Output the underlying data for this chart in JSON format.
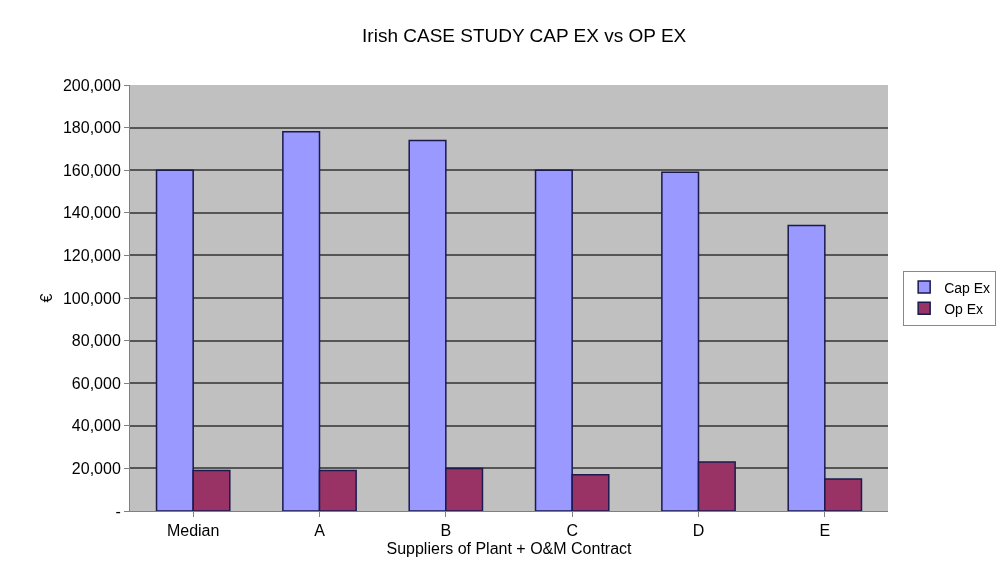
{
  "chart_data": {
    "type": "bar",
    "title": "Irish CASE STUDY CAP EX vs OP EX",
    "xlabel": "Suppliers of Plant + O&M Contract",
    "ylabel": "€",
    "categories": [
      "Median",
      "A",
      "B",
      "C",
      "D",
      "E"
    ],
    "series": [
      {
        "name": "Cap Ex",
        "color": "#9999ff",
        "values": [
          160000,
          178000,
          174000,
          160000,
          159000,
          134000
        ]
      },
      {
        "name": "Op Ex",
        "color": "#993366",
        "values": [
          19000,
          19000,
          20000,
          17000,
          23000,
          15000
        ]
      }
    ],
    "ylim": [
      0,
      200000
    ],
    "yticks": [
      {
        "value": 0,
        "label": "-"
      },
      {
        "value": 20000,
        "label": "20,000"
      },
      {
        "value": 40000,
        "label": "40,000"
      },
      {
        "value": 60000,
        "label": "60,000"
      },
      {
        "value": 80000,
        "label": "80,000"
      },
      {
        "value": 100000,
        "label": "100,000"
      },
      {
        "value": 120000,
        "label": "120,000"
      },
      {
        "value": 140000,
        "label": "140,000"
      },
      {
        "value": 160000,
        "label": "160,000"
      },
      {
        "value": 180000,
        "label": "180,000"
      },
      {
        "value": 200000,
        "label": "200,000"
      }
    ],
    "grid": "y",
    "legend": "right"
  }
}
